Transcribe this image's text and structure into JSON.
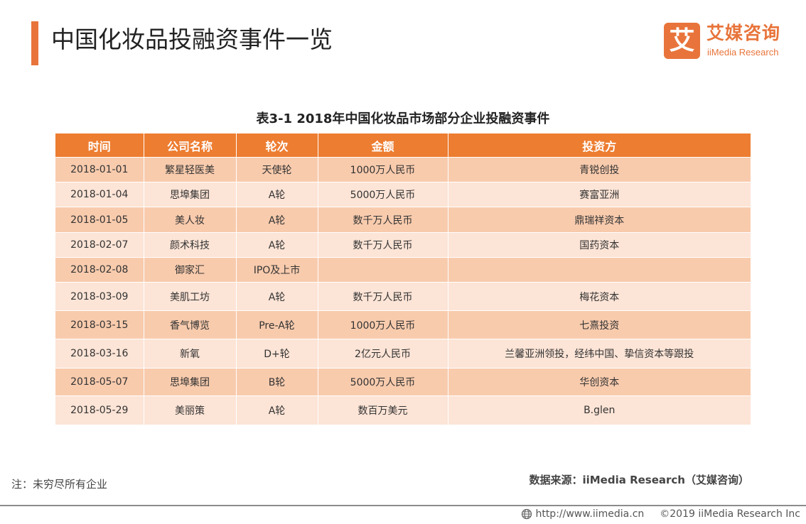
{
  "page": {
    "title": "中国化妆品投融资事件一览"
  },
  "logo": {
    "mark": "艾",
    "cn": "艾媒咨询",
    "en": "iiMedia Research"
  },
  "table": {
    "caption": "表3-1 2018年中国化妆品市场部分企业投融资事件",
    "headers": [
      "时间",
      "公司名称",
      "轮次",
      "金额",
      "投资方"
    ],
    "rows": [
      [
        "2018-01-01",
        "繁星轻医美",
        "天使轮",
        "1000万人民币",
        "青锐创投"
      ],
      [
        "2018-01-04",
        "思埠集团",
        "A轮",
        "5000万人民币",
        "赛富亚洲"
      ],
      [
        "2018-01-05",
        "美人妆",
        "A轮",
        "数千万人民币",
        "鼎瑞祥资本"
      ],
      [
        "2018-02-07",
        "颜术科技",
        "A轮",
        "数千万人民币",
        "国药资本"
      ],
      [
        "2018-02-08",
        "御家汇",
        "IPO及上市",
        "",
        ""
      ],
      [
        "2018-03-09",
        "美肌工坊",
        "A轮",
        "数千万人民币",
        "梅花资本"
      ],
      [
        "2018-03-15",
        "香气博览",
        "Pre-A轮",
        "1000万人民币",
        "七熹投资"
      ],
      [
        "2018-03-16",
        "新氧",
        "D+轮",
        "2亿元人民币",
        "兰馨亚洲领投，经纬中国、挚信资本等跟投"
      ],
      [
        "2018-05-07",
        "思埠集团",
        "B轮",
        "5000万人民币",
        "华创资本"
      ],
      [
        "2018-05-29",
        "美丽策",
        "A轮",
        "数百万美元",
        "B.glen"
      ]
    ]
  },
  "footnote": "注：未穷尽所有企业",
  "source": "数据来源：iiMedia Research（艾媒咨询）",
  "footer": {
    "url": "http://www.iimedia.cn",
    "copyright": "©2019  iiMedia Research  Inc",
    "icon": "globe-icon"
  },
  "colors": {
    "accent": "#e8743b",
    "header_bg": "#ed7d31",
    "row_dark": "#f8cbad",
    "row_light": "#fce4d6"
  }
}
